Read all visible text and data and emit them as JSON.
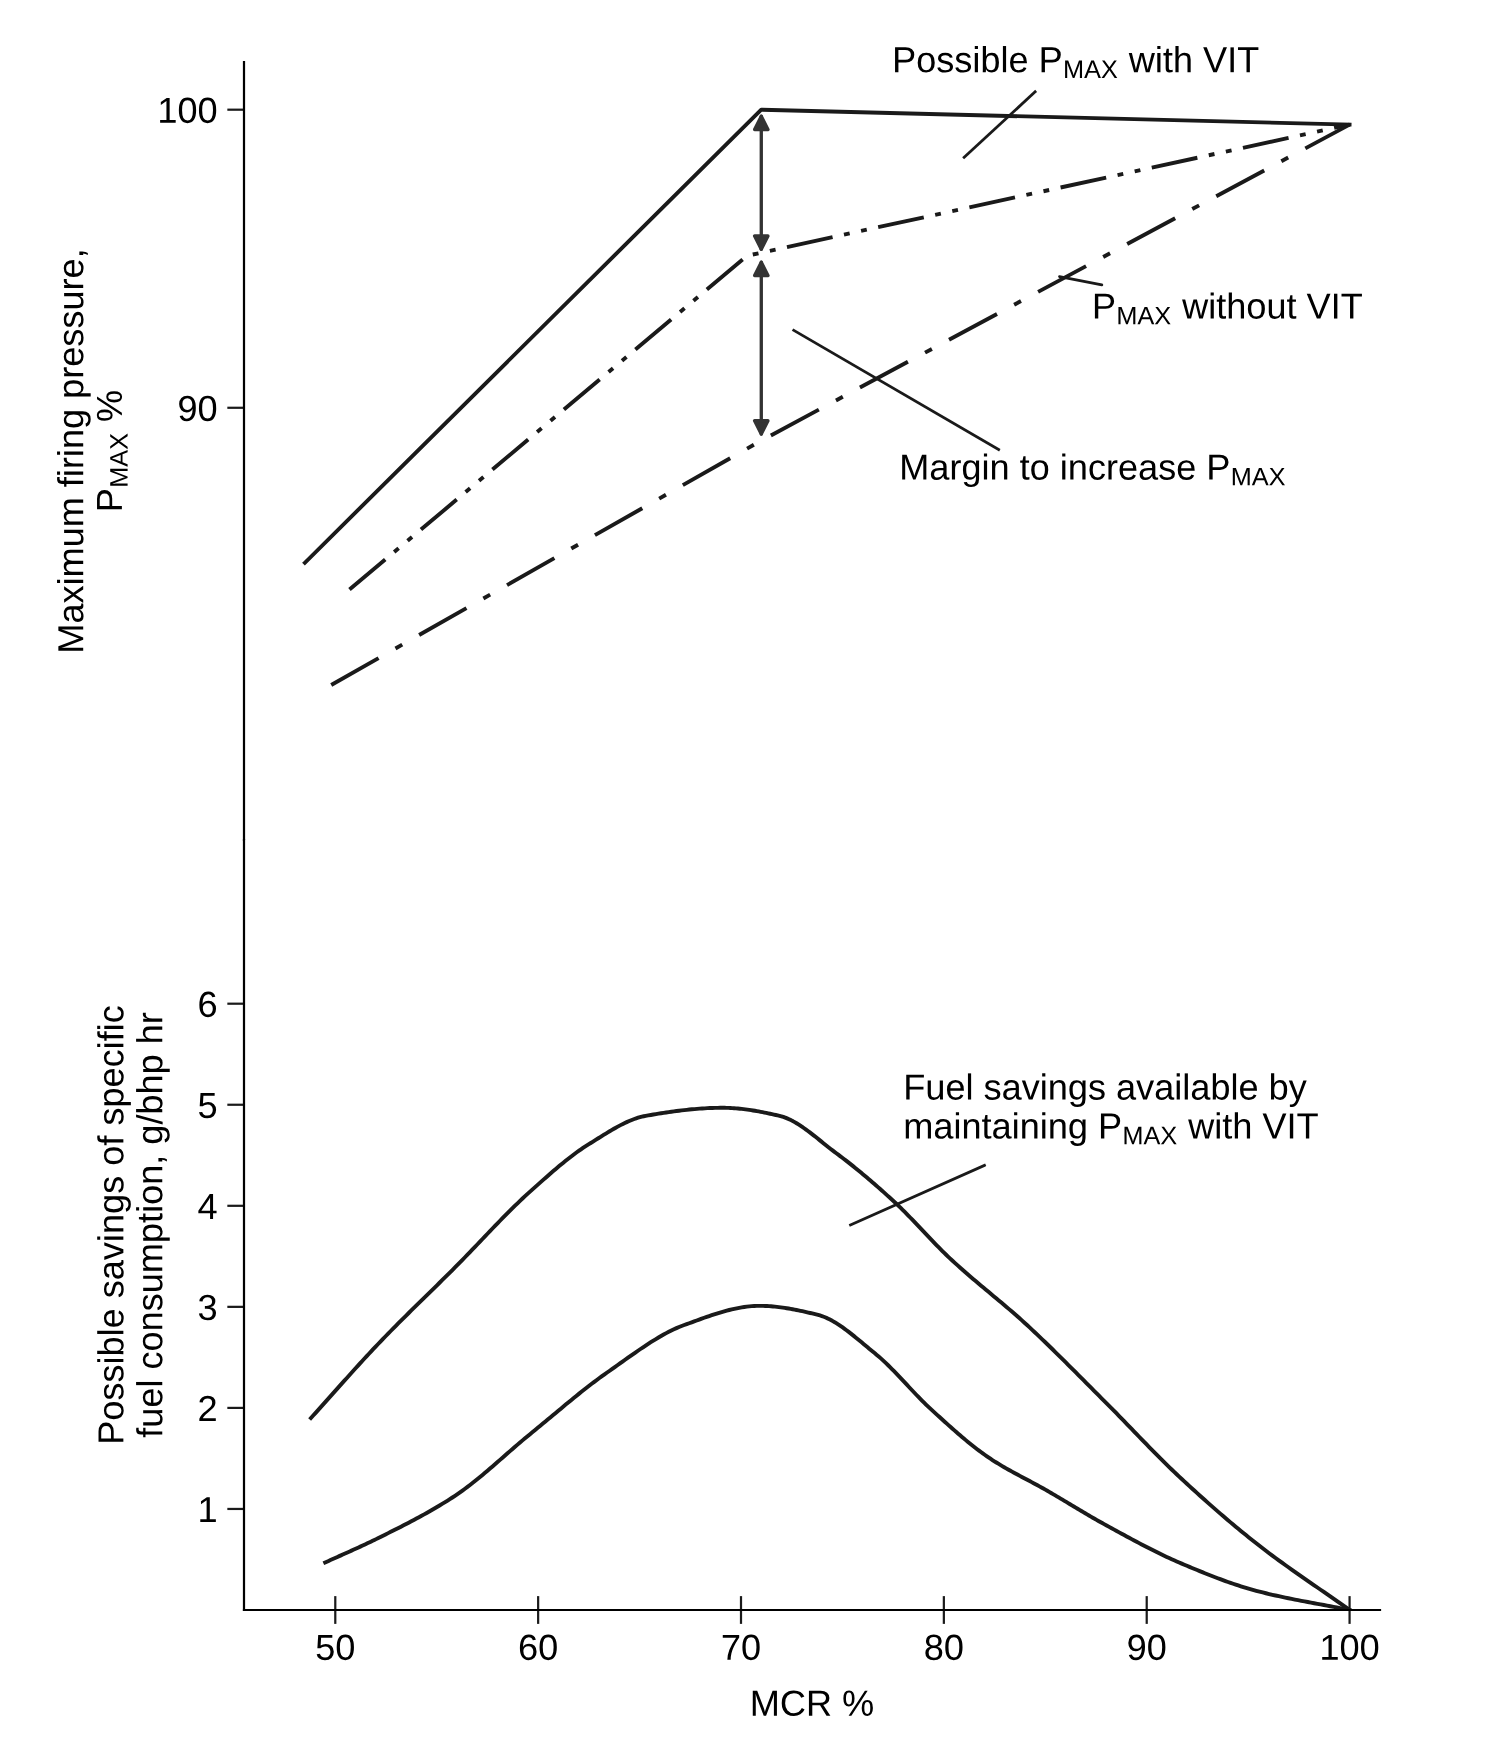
{
  "chart_data": [
    {
      "type": "line",
      "ylabel": "Maximum firing pressure,\nP$_{MAX}$ %",
      "xlim": [
        45.5,
        101.5
      ],
      "ylim": [
        75.5,
        101.6
      ],
      "yticks": [
        90,
        100
      ],
      "tick_labels": "y",
      "grid": false,
      "legend": false,
      "series": [
        {
          "color": "#1a1a1a",
          "line_style": "solid",
          "x": [
            48.5,
            71,
            100
          ],
          "values": [
            84.8,
            100,
            99.5
          ]
        },
        {
          "color": "#1a1a1a",
          "line_style": "dashdotdot",
          "x": [
            50.7,
            70.3,
            100
          ],
          "values": [
            83.9,
            95.1,
            99.5
          ]
        },
        {
          "color": "#1a1a1a",
          "line_style": "dashdot",
          "x": [
            49.8,
            71,
            100
          ],
          "values": [
            80.7,
            88.9,
            99.5
          ]
        }
      ],
      "annotations": [
        "Possible P$_{MAX}$ with VIT",
        {
          "text": "P$_{MAX}$ without VIT",
          "x": 85.7,
          "y": 94.4
        },
        "Margin to increase P$_{MAX}$"
      ]
    },
    {
      "type": "line",
      "xlabel": "MCR %",
      "ylabel": "Possible savings of specific\nfuel consumption, g/bhp hr",
      "xlim": [
        45.5,
        101.5
      ],
      "xticks": [
        50,
        60,
        70,
        80,
        90,
        100
      ],
      "ylim": [
        0,
        7.62
      ],
      "yticks": [
        1,
        2,
        3,
        4,
        5,
        6
      ],
      "grid": false,
      "legend": false,
      "series": [
        {
          "color": "#1a1a1a",
          "line_style": "solid",
          "x": [
            48.8,
            52.1,
            55.9,
            59.6,
            62.5,
            65.3,
            69.1,
            71.9,
            74.7,
            77.5,
            80.3,
            84.1,
            87.9,
            91.6,
            95.4,
            100
          ],
          "values": [
            1.9,
            2.63,
            3.39,
            4.14,
            4.61,
            4.89,
            4.97,
            4.89,
            4.52,
            4.05,
            3.48,
            2.82,
            2.07,
            1.32,
            0.66,
            0
          ]
        },
        {
          "color": "#1a1a1a",
          "line_style": "solid",
          "x": [
            49.5,
            52.1,
            55.9,
            59.6,
            63.4,
            67.2,
            70.9,
            73.8,
            76.6,
            79.4,
            82.2,
            85.1,
            87.9,
            91.6,
            95.4,
            100
          ],
          "values": [
            0.47,
            0.71,
            1.13,
            1.74,
            2.35,
            2.82,
            3.01,
            2.92,
            2.54,
            1.98,
            1.51,
            1.18,
            0.85,
            0.47,
            0.19,
            0
          ]
        }
      ],
      "annotations": [
        "Fuel savings available by\nmaintaining P$_{MAX}$ with VIT"
      ]
    }
  ]
}
